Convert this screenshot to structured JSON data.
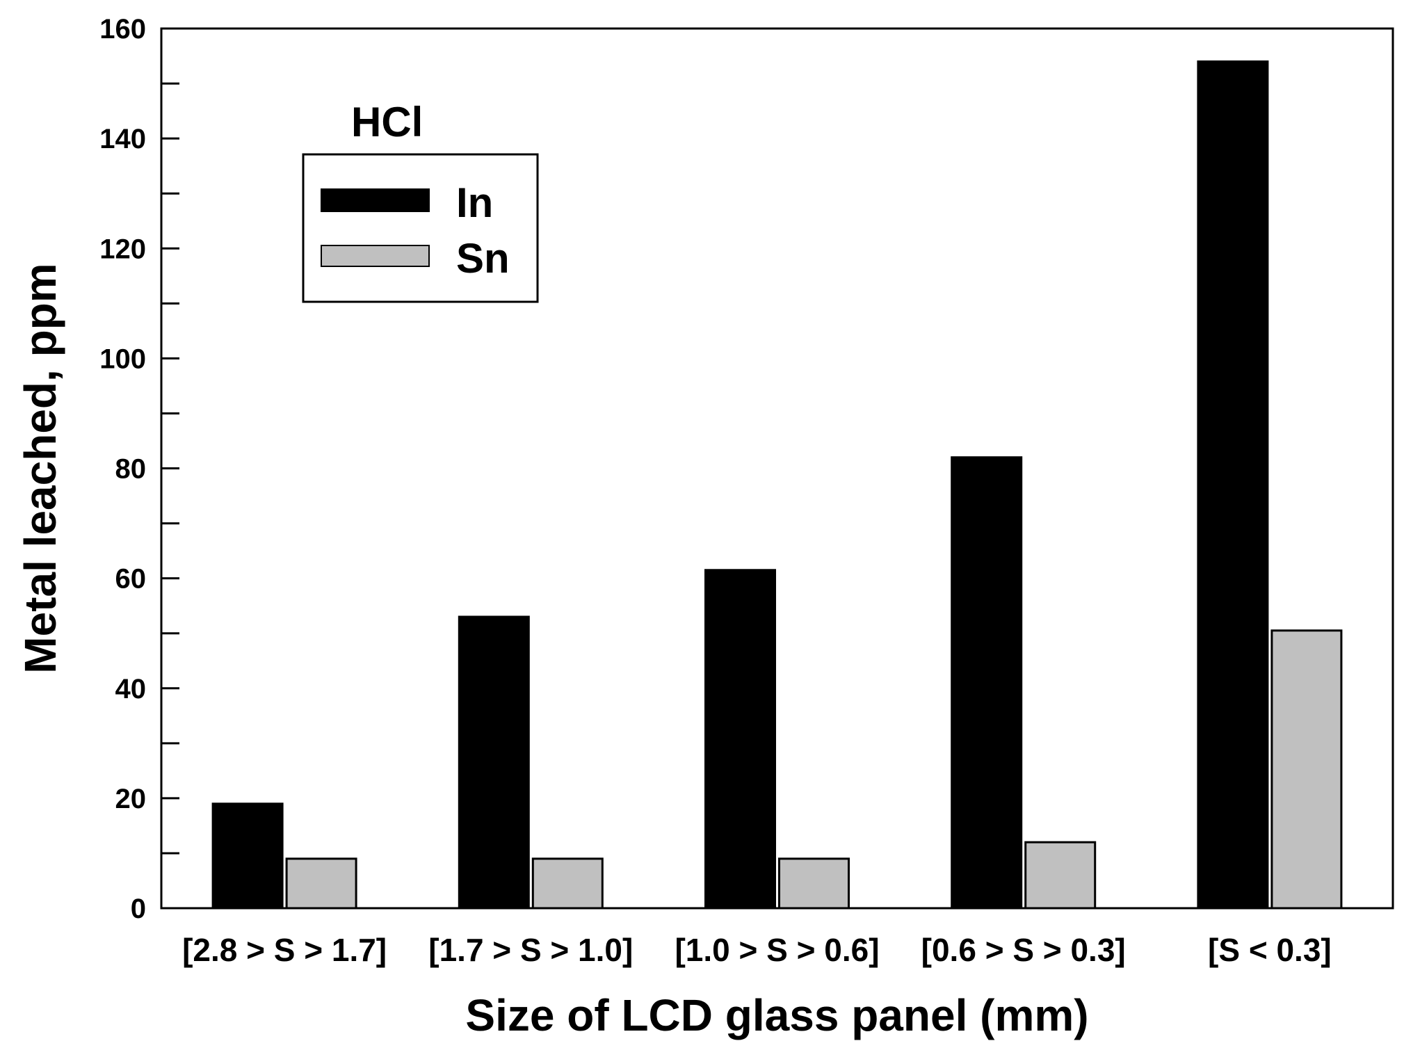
{
  "chart_data": {
    "type": "bar",
    "title": "",
    "xlabel": "Size of LCD glass panel (mm)",
    "ylabel": "Metal leached, ppm",
    "ylim": [
      0,
      160
    ],
    "yticks": [
      0,
      20,
      40,
      60,
      80,
      100,
      120,
      140,
      160
    ],
    "ytick_labels": [
      "0",
      "20",
      "40",
      "60",
      "80",
      "100",
      "120",
      "140",
      "160"
    ],
    "categories": [
      "[2.8 > S > 1.7]",
      "[1.7 > S > 1.0]",
      "[1.0 > S > 0.6]",
      "[0.6 > S > 0.3]",
      "[S <  0.3]"
    ],
    "series": [
      {
        "name": "In",
        "color": "#000000",
        "values": [
          19,
          53,
          61.5,
          82,
          154
        ]
      },
      {
        "name": "Sn",
        "color": "#c0c0c0",
        "values": [
          9,
          9,
          9,
          12,
          50.5
        ]
      }
    ],
    "legend": {
      "title": "HCl",
      "placement": "top-left"
    },
    "grid": false
  }
}
